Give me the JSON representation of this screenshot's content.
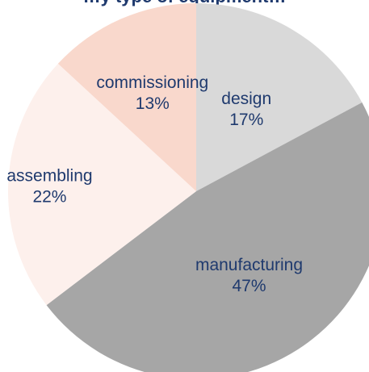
{
  "chart_data": {
    "type": "pie",
    "title": "…y type of equipment…",
    "categories": [
      "design",
      "manufacturing",
      "assembling",
      "commissioning"
    ],
    "values": [
      17,
      47,
      22,
      13
    ],
    "value_labels": [
      "17%",
      "47%",
      "22%",
      "13%"
    ],
    "colors": [
      "#d9d9d9",
      "#a6a6a6",
      "#fdf0ec",
      "#f9d8cc"
    ],
    "start": "12 o'clock, clockwise",
    "legend": "none"
  }
}
